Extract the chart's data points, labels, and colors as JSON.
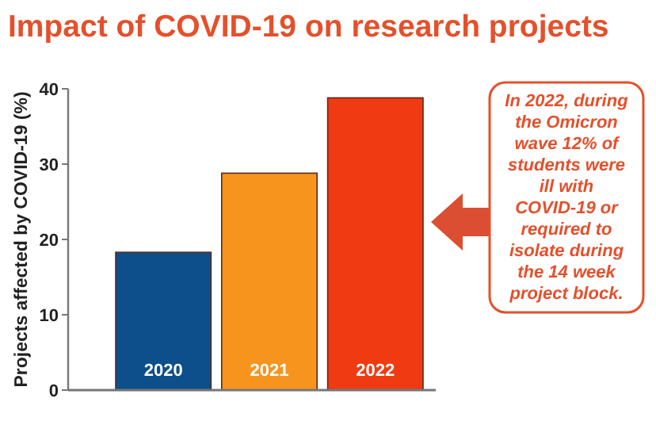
{
  "chart_data": {
    "type": "bar",
    "title": "Impact of COVID-19 on research projects",
    "ylabel": "Projects affected by COVID-19 (%)",
    "categories": [
      "2020",
      "2021",
      "2022"
    ],
    "values": [
      18.3,
      28.8,
      38.8
    ],
    "colors": [
      "#0d4f8b",
      "#f7941d",
      "#f03b12"
    ],
    "ylim": [
      0,
      40
    ],
    "yticks": [
      0,
      10,
      20,
      30,
      40
    ],
    "grid": false,
    "annotations": [
      "In 2022, during the Omicron wave 12% of students were ill with COVID-19 or required to isolate during the 14 week project block."
    ]
  }
}
